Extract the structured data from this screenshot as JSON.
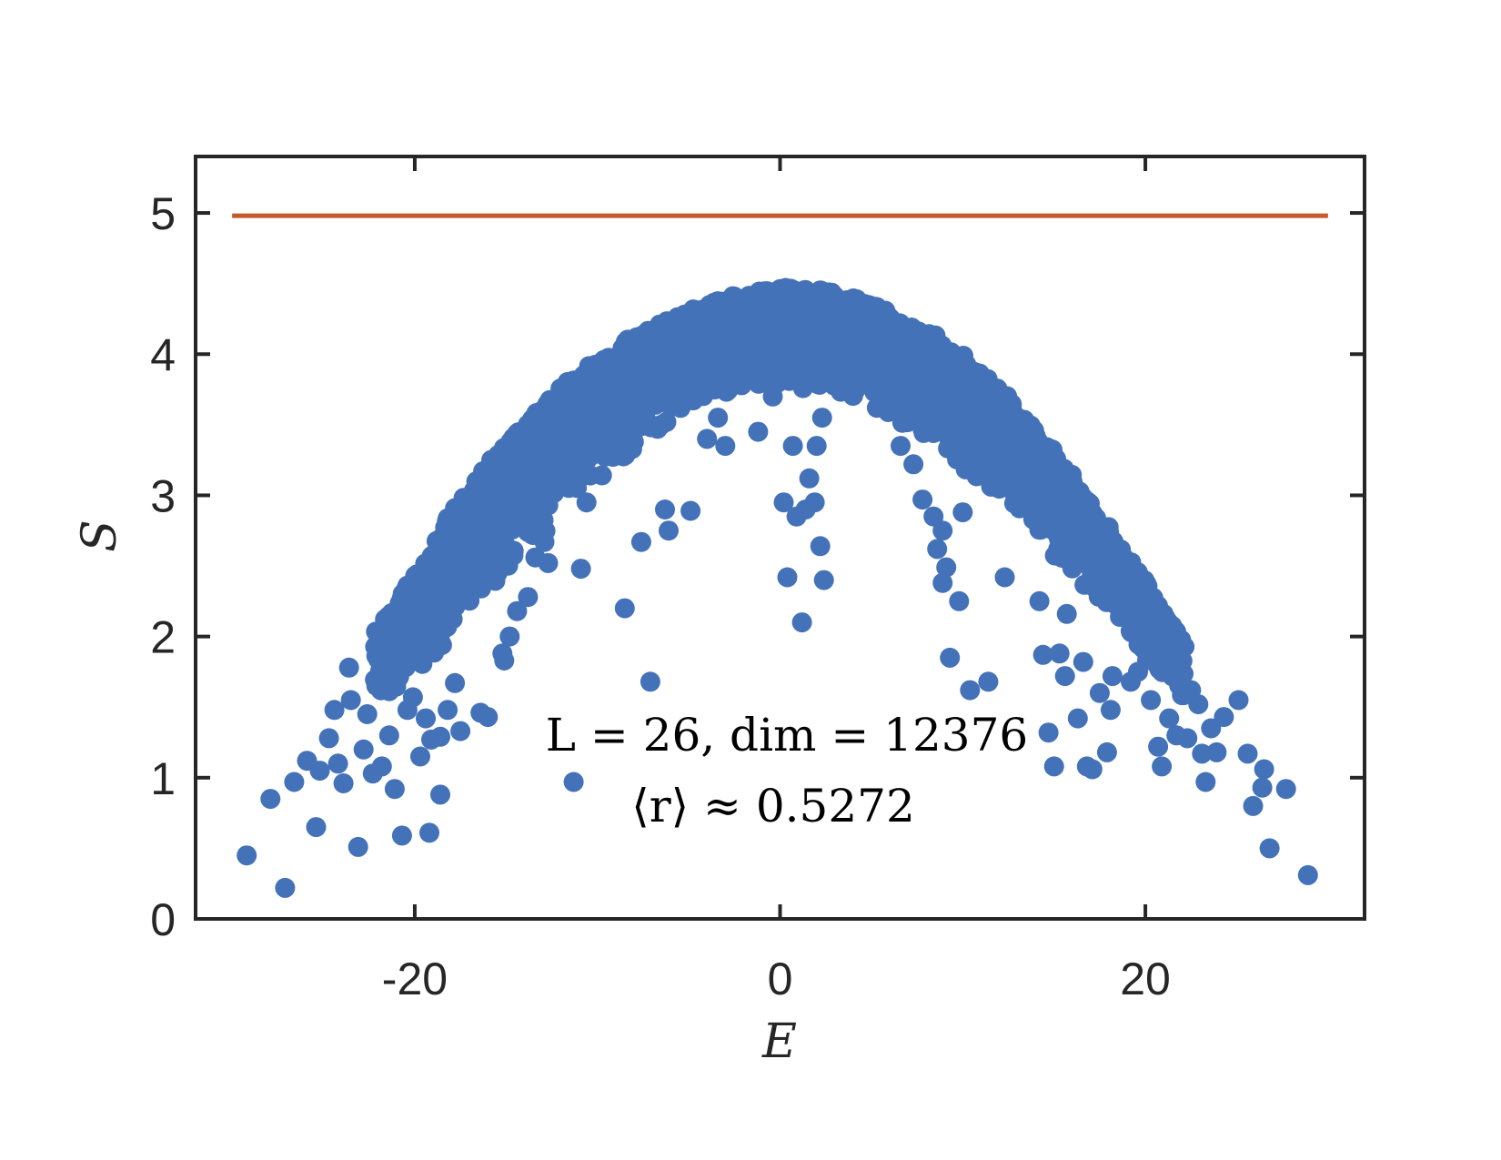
{
  "chart_data": {
    "type": "scatter",
    "xlabel": "E",
    "ylabel": "S",
    "xlim": [
      -32,
      32
    ],
    "ylim": [
      0,
      5.4
    ],
    "x_ticks": [
      {
        "value": -20,
        "label": "-20"
      },
      {
        "value": 0,
        "label": "0"
      },
      {
        "value": 20,
        "label": "20"
      }
    ],
    "y_ticks": [
      {
        "value": 0,
        "label": "0"
      },
      {
        "value": 1,
        "label": "1"
      },
      {
        "value": 2,
        "label": "2"
      },
      {
        "value": 3,
        "label": "3"
      },
      {
        "value": 4,
        "label": "4"
      },
      {
        "value": 5,
        "label": "5"
      }
    ],
    "annotations": [
      "L = 26,  dim = 12376",
      "⟨r⟩ ≈ 0.5272"
    ],
    "colors": {
      "points": "#4472b9",
      "reference_line": "#c45a2a",
      "axes": "#262626"
    },
    "grid": false,
    "series": [
      {
        "marker": "dot",
        "color": "#4472b9",
        "band_envelope": {
          "x": [
            -22,
            -20,
            -18,
            -16,
            -14,
            -12,
            -10,
            -8,
            -6,
            -4,
            -2,
            0,
            2,
            4,
            6,
            8,
            10,
            12,
            14,
            16,
            18,
            20,
            22
          ],
          "upper": [
            2.05,
            2.45,
            2.85,
            3.2,
            3.5,
            3.75,
            3.95,
            4.12,
            4.25,
            4.36,
            4.44,
            4.47,
            4.46,
            4.4,
            4.3,
            4.17,
            3.98,
            3.75,
            3.45,
            3.12,
            2.75,
            2.38,
            1.95
          ],
          "lower": [
            1.5,
            1.75,
            2.0,
            2.3,
            2.6,
            2.85,
            3.1,
            3.3,
            3.5,
            3.65,
            3.75,
            3.75,
            3.7,
            3.65,
            3.55,
            3.4,
            3.2,
            2.95,
            2.7,
            2.45,
            2.15,
            1.85,
            1.5
          ]
        },
        "points": [
          {
            "x": -29.2,
            "y": 0.45
          },
          {
            "x": -27.9,
            "y": 0.85
          },
          {
            "x": -27.1,
            "y": 0.22
          },
          {
            "x": -26.6,
            "y": 0.97
          },
          {
            "x": -25.9,
            "y": 1.12
          },
          {
            "x": -25.4,
            "y": 0.65
          },
          {
            "x": -25.2,
            "y": 1.05
          },
          {
            "x": -24.7,
            "y": 1.28
          },
          {
            "x": -24.4,
            "y": 1.48
          },
          {
            "x": -24.2,
            "y": 1.1
          },
          {
            "x": -23.9,
            "y": 0.96
          },
          {
            "x": -23.6,
            "y": 1.78
          },
          {
            "x": -23.5,
            "y": 1.55
          },
          {
            "x": -23.1,
            "y": 0.51
          },
          {
            "x": -22.8,
            "y": 1.2
          },
          {
            "x": -22.6,
            "y": 1.45
          },
          {
            "x": -22.3,
            "y": 1.03
          },
          {
            "x": -22.1,
            "y": 1.92
          },
          {
            "x": -21.8,
            "y": 1.08
          },
          {
            "x": -21.4,
            "y": 1.3
          },
          {
            "x": -21.1,
            "y": 0.92
          },
          {
            "x": -21.0,
            "y": 1.68
          },
          {
            "x": -20.7,
            "y": 2.22
          },
          {
            "x": -20.7,
            "y": 0.59
          },
          {
            "x": -20.4,
            "y": 1.48
          },
          {
            "x": -20.1,
            "y": 1.57
          },
          {
            "x": -19.7,
            "y": 1.15
          },
          {
            "x": -19.4,
            "y": 1.42
          },
          {
            "x": -19.2,
            "y": 0.61
          },
          {
            "x": -19.1,
            "y": 1.27
          },
          {
            "x": -18.6,
            "y": 1.29
          },
          {
            "x": -18.6,
            "y": 0.88
          },
          {
            "x": -18.2,
            "y": 1.48
          },
          {
            "x": -17.8,
            "y": 1.67
          },
          {
            "x": -17.5,
            "y": 1.33
          },
          {
            "x": -16.4,
            "y": 1.46
          },
          {
            "x": -16.0,
            "y": 1.43
          },
          {
            "x": -15.2,
            "y": 1.88
          },
          {
            "x": -15.1,
            "y": 1.83
          },
          {
            "x": -14.8,
            "y": 2.0
          },
          {
            "x": -14.4,
            "y": 2.18
          },
          {
            "x": -13.8,
            "y": 2.28
          },
          {
            "x": -13.4,
            "y": 2.56
          },
          {
            "x": -12.9,
            "y": 2.67
          },
          {
            "x": -12.7,
            "y": 2.52
          },
          {
            "x": -11.3,
            "y": 0.97
          },
          {
            "x": -10.9,
            "y": 2.48
          },
          {
            "x": -10.6,
            "y": 2.95
          },
          {
            "x": -8.5,
            "y": 2.2
          },
          {
            "x": -7.6,
            "y": 2.67
          },
          {
            "x": -7.1,
            "y": 1.68
          },
          {
            "x": -6.3,
            "y": 2.9
          },
          {
            "x": -6.1,
            "y": 2.75
          },
          {
            "x": -4.9,
            "y": 2.89
          },
          {
            "x": -4.0,
            "y": 3.4
          },
          {
            "x": -3.4,
            "y": 3.55
          },
          {
            "x": -3.0,
            "y": 3.35
          },
          {
            "x": -2.1,
            "y": 3.78
          },
          {
            "x": -1.2,
            "y": 3.45
          },
          {
            "x": -0.4,
            "y": 3.7
          },
          {
            "x": 0.2,
            "y": 2.95
          },
          {
            "x": 0.4,
            "y": 2.42
          },
          {
            "x": 0.7,
            "y": 3.35
          },
          {
            "x": 0.9,
            "y": 2.85
          },
          {
            "x": 1.2,
            "y": 2.1
          },
          {
            "x": 1.4,
            "y": 2.9
          },
          {
            "x": 1.6,
            "y": 3.12
          },
          {
            "x": 1.9,
            "y": 2.95
          },
          {
            "x": 2.0,
            "y": 3.35
          },
          {
            "x": 2.2,
            "y": 2.64
          },
          {
            "x": 2.3,
            "y": 3.55
          },
          {
            "x": 2.4,
            "y": 2.4
          },
          {
            "x": 3.0,
            "y": 3.9
          },
          {
            "x": 4.1,
            "y": 4.0
          },
          {
            "x": 5.3,
            "y": 3.62
          },
          {
            "x": 6.6,
            "y": 3.35
          },
          {
            "x": 7.3,
            "y": 3.22
          },
          {
            "x": 7.8,
            "y": 2.97
          },
          {
            "x": 8.4,
            "y": 2.85
          },
          {
            "x": 8.6,
            "y": 2.62
          },
          {
            "x": 8.9,
            "y": 2.75
          },
          {
            "x": 8.9,
            "y": 2.38
          },
          {
            "x": 9.1,
            "y": 2.49
          },
          {
            "x": 9.3,
            "y": 1.85
          },
          {
            "x": 9.8,
            "y": 2.25
          },
          {
            "x": 10.0,
            "y": 2.88
          },
          {
            "x": 10.4,
            "y": 1.62
          },
          {
            "x": 11.4,
            "y": 1.68
          },
          {
            "x": 12.3,
            "y": 2.42
          },
          {
            "x": 14.2,
            "y": 2.25
          },
          {
            "x": 14.4,
            "y": 1.87
          },
          {
            "x": 14.7,
            "y": 1.32
          },
          {
            "x": 15.0,
            "y": 1.08
          },
          {
            "x": 15.3,
            "y": 1.88
          },
          {
            "x": 15.6,
            "y": 1.72
          },
          {
            "x": 15.7,
            "y": 2.16
          },
          {
            "x": 16.3,
            "y": 1.42
          },
          {
            "x": 16.6,
            "y": 1.82
          },
          {
            "x": 16.8,
            "y": 1.08
          },
          {
            "x": 17.1,
            "y": 1.06
          },
          {
            "x": 17.5,
            "y": 1.6
          },
          {
            "x": 17.9,
            "y": 1.18
          },
          {
            "x": 18.1,
            "y": 1.48
          },
          {
            "x": 18.2,
            "y": 1.72
          },
          {
            "x": 19.2,
            "y": 1.68
          },
          {
            "x": 19.6,
            "y": 1.75
          },
          {
            "x": 20.3,
            "y": 1.55
          },
          {
            "x": 20.7,
            "y": 1.22
          },
          {
            "x": 20.9,
            "y": 1.08
          },
          {
            "x": 21.3,
            "y": 1.42
          },
          {
            "x": 21.7,
            "y": 1.3
          },
          {
            "x": 22.3,
            "y": 1.28
          },
          {
            "x": 22.5,
            "y": 1.62
          },
          {
            "x": 22.9,
            "y": 1.52
          },
          {
            "x": 23.1,
            "y": 1.17
          },
          {
            "x": 23.3,
            "y": 0.97
          },
          {
            "x": 23.6,
            "y": 1.35
          },
          {
            "x": 23.9,
            "y": 1.18
          },
          {
            "x": 24.3,
            "y": 1.43
          },
          {
            "x": 25.1,
            "y": 1.55
          },
          {
            "x": 25.6,
            "y": 1.17
          },
          {
            "x": 25.9,
            "y": 0.8
          },
          {
            "x": 26.4,
            "y": 0.93
          },
          {
            "x": 26.5,
            "y": 1.06
          },
          {
            "x": 26.8,
            "y": 0.5
          },
          {
            "x": 27.7,
            "y": 0.92
          },
          {
            "x": 28.9,
            "y": 0.31
          }
        ]
      },
      {
        "marker": "line",
        "color": "#c45a2a",
        "x": [
          -30,
          30
        ],
        "y": [
          4.98,
          4.98
        ]
      }
    ]
  }
}
